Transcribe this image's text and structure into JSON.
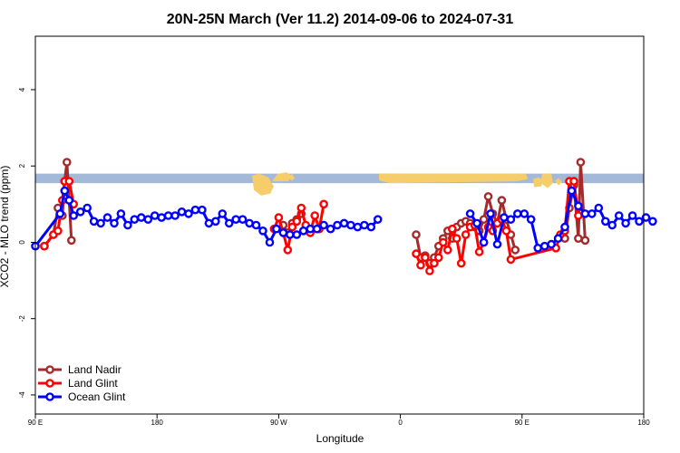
{
  "chart_data": {
    "type": "line",
    "title": "20N-25N March (Ver 11.2)   2014-09-06 to 2024-07-31",
    "xlabel": "Longitude",
    "ylabel": "XCO2 - MLO trend (ppm)",
    "xlim": [
      -90,
      180
    ],
    "ylim": [
      -4.5,
      5.4
    ],
    "x_ticks": [
      {
        "value": -90,
        "label": "90 E"
      },
      {
        "value": -36,
        "label": "180"
      },
      {
        "value": 18,
        "label": "90 W"
      },
      {
        "value": 72,
        "label": "0"
      },
      {
        "value": 126,
        "label": "90 E"
      },
      {
        "value": 180,
        "label": "180"
      }
    ],
    "y_ticks": [
      {
        "value": -4,
        "label": "-4"
      },
      {
        "value": -2,
        "label": "-2"
      },
      {
        "value": 0,
        "label": "0"
      },
      {
        "value": 2,
        "label": "2"
      },
      {
        "value": 4,
        "label": "4"
      }
    ],
    "grid": false,
    "legend_position": "bottom-left",
    "map_strip": {
      "y_range": [
        1.55,
        1.8
      ],
      "ocean_color": "#a4b8d8",
      "land_color": "#f5cd6a"
    },
    "series": [
      {
        "name": "Land Nadir",
        "color": "#a52a2a",
        "points": [
          [
            -86,
            -0.1
          ],
          [
            -82,
            0.2
          ],
          [
            -80,
            0.9
          ],
          [
            -78,
            0.7
          ],
          [
            -77,
            1.6
          ],
          [
            -76,
            2.1
          ],
          [
            -74,
            0.05
          ],
          [
            20,
            0.45
          ],
          [
            22,
            0.25
          ],
          [
            24,
            0.5
          ],
          [
            26,
            0.6
          ],
          [
            28,
            0.75
          ],
          [
            79,
            0.2
          ],
          [
            81,
            -0.4
          ],
          [
            83,
            -0.35
          ],
          [
            85,
            -0.55
          ],
          [
            87,
            -0.4
          ],
          [
            89,
            -0.1
          ],
          [
            91,
            0.1
          ],
          [
            93,
            0.3
          ],
          [
            95,
            0.1
          ],
          [
            97,
            0.4
          ],
          [
            99,
            0.5
          ],
          [
            101,
            0.55
          ],
          [
            103,
            0.5
          ],
          [
            105,
            0.4
          ],
          [
            107,
            0.3
          ],
          [
            109,
            0.6
          ],
          [
            111,
            1.2
          ],
          [
            113,
            0.75
          ],
          [
            115,
            0.5
          ],
          [
            117,
            1.1
          ],
          [
            119,
            0.6
          ],
          [
            121,
            0.2
          ],
          [
            123,
            -0.2
          ],
          [
            145,
            0.1
          ],
          [
            147,
            0.9
          ],
          [
            149,
            1.5
          ],
          [
            151,
            0.1
          ],
          [
            152,
            2.1
          ],
          [
            154,
            0.05
          ]
        ]
      },
      {
        "name": "Land Glint",
        "color": "#ff0000",
        "points": [
          [
            -86,
            -0.1
          ],
          [
            -82,
            0.2
          ],
          [
            -80,
            0.3
          ],
          [
            -78,
            1.1
          ],
          [
            -77,
            1.6
          ],
          [
            -75,
            1.6
          ],
          [
            -73,
            1.0
          ],
          [
            16,
            0.35
          ],
          [
            18,
            0.65
          ],
          [
            20,
            0.25
          ],
          [
            22,
            -0.2
          ],
          [
            24,
            0.4
          ],
          [
            26,
            0.55
          ],
          [
            28,
            0.9
          ],
          [
            30,
            0.45
          ],
          [
            32,
            0.25
          ],
          [
            34,
            0.7
          ],
          [
            36,
            0.35
          ],
          [
            38,
            1.0
          ],
          [
            79,
            -0.3
          ],
          [
            81,
            -0.6
          ],
          [
            83,
            -0.4
          ],
          [
            85,
            -0.75
          ],
          [
            87,
            -0.55
          ],
          [
            89,
            -0.4
          ],
          [
            91,
            0.0
          ],
          [
            93,
            -0.2
          ],
          [
            95,
            0.35
          ],
          [
            97,
            0.1
          ],
          [
            99,
            -0.55
          ],
          [
            101,
            0.2
          ],
          [
            103,
            0.4
          ],
          [
            105,
            0.45
          ],
          [
            107,
            -0.25
          ],
          [
            109,
            0.0
          ],
          [
            111,
            0.4
          ],
          [
            113,
            0.3
          ],
          [
            115,
            0.5
          ],
          [
            117,
            0.6
          ],
          [
            119,
            0.3
          ],
          [
            121,
            -0.45
          ],
          [
            141,
            -0.15
          ],
          [
            143,
            0.2
          ],
          [
            145,
            0.3
          ],
          [
            147,
            1.6
          ],
          [
            149,
            1.6
          ],
          [
            151,
            0.7
          ]
        ]
      },
      {
        "name": "Ocean Glint",
        "color": "#0000ff",
        "points": [
          [
            -90,
            -0.1
          ],
          [
            -79,
            0.75
          ],
          [
            -77,
            1.35
          ],
          [
            -75,
            1.1
          ],
          [
            -73,
            0.7
          ],
          [
            -70,
            0.8
          ],
          [
            -67,
            0.9
          ],
          [
            -64,
            0.55
          ],
          [
            -61,
            0.5
          ],
          [
            -58,
            0.65
          ],
          [
            -55,
            0.5
          ],
          [
            -52,
            0.75
          ],
          [
            -49,
            0.45
          ],
          [
            -46,
            0.6
          ],
          [
            -43,
            0.65
          ],
          [
            -40,
            0.6
          ],
          [
            -37,
            0.7
          ],
          [
            -34,
            0.65
          ],
          [
            -31,
            0.7
          ],
          [
            -28,
            0.7
          ],
          [
            -25,
            0.8
          ],
          [
            -22,
            0.75
          ],
          [
            -19,
            0.85
          ],
          [
            -16,
            0.85
          ],
          [
            -13,
            0.5
          ],
          [
            -10,
            0.55
          ],
          [
            -7,
            0.75
          ],
          [
            -4,
            0.5
          ],
          [
            -1,
            0.6
          ],
          [
            2,
            0.6
          ],
          [
            5,
            0.5
          ],
          [
            8,
            0.45
          ],
          [
            11,
            0.3
          ],
          [
            14,
            0.0
          ],
          [
            17,
            0.35
          ],
          [
            20,
            0.25
          ],
          [
            23,
            0.2
          ],
          [
            26,
            0.2
          ],
          [
            29,
            0.3
          ],
          [
            32,
            0.35
          ],
          [
            35,
            0.35
          ],
          [
            38,
            0.45
          ],
          [
            41,
            0.35
          ],
          [
            44,
            0.45
          ],
          [
            47,
            0.5
          ],
          [
            50,
            0.45
          ],
          [
            53,
            0.4
          ],
          [
            56,
            0.45
          ],
          [
            59,
            0.4
          ],
          [
            62,
            0.6
          ],
          [
            103,
            0.75
          ],
          [
            106,
            0.5
          ],
          [
            109,
            0.0
          ],
          [
            112,
            0.75
          ],
          [
            115,
            -0.05
          ],
          [
            118,
            0.65
          ],
          [
            121,
            0.6
          ],
          [
            124,
            0.75
          ],
          [
            127,
            0.75
          ],
          [
            130,
            0.6
          ],
          [
            133,
            -0.15
          ],
          [
            136,
            -0.1
          ],
          [
            139,
            -0.05
          ],
          [
            142,
            0.1
          ],
          [
            145,
            0.4
          ],
          [
            148,
            1.35
          ],
          [
            151,
            0.95
          ],
          [
            154,
            0.75
          ],
          [
            157,
            0.75
          ],
          [
            160,
            0.9
          ],
          [
            163,
            0.55
          ],
          [
            166,
            0.45
          ],
          [
            169,
            0.7
          ],
          [
            172,
            0.5
          ],
          [
            175,
            0.7
          ],
          [
            178,
            0.55
          ],
          [
            181,
            0.65
          ],
          [
            184,
            0.55
          ]
        ]
      }
    ]
  }
}
